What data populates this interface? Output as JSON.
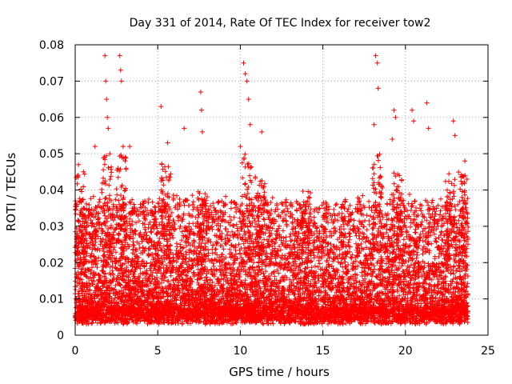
{
  "chart_data": {
    "type": "scatter",
    "title": "Day 331 of 2014, Rate Of TEC Index for receiver tow2",
    "xlabel": "GPS time / hours",
    "ylabel": "ROTI / TECUs",
    "xlim": [
      0,
      25
    ],
    "ylim": [
      0,
      0.08
    ],
    "xticks": [
      "0",
      "5",
      "10",
      "15",
      "20",
      "25"
    ],
    "yticks": [
      "0",
      "0.01",
      "0.02",
      "0.03",
      "0.04",
      "0.05",
      "0.06",
      "0.07",
      "0.08"
    ],
    "grid": true,
    "marker": "+",
    "color": "#ff0000",
    "series": [
      {
        "name": "ROTI",
        "x_range": [
          0,
          23.8
        ],
        "bulk_range": [
          0.004,
          0.03
        ],
        "notes": "dense scatter of many thousands of points; selected outliers listed below",
        "outliers": [
          [
            0.2,
            0.047
          ],
          [
            0.5,
            0.045
          ],
          [
            1.2,
            0.052
          ],
          [
            1.8,
            0.077
          ],
          [
            1.85,
            0.07
          ],
          [
            1.9,
            0.065
          ],
          [
            1.95,
            0.06
          ],
          [
            2.0,
            0.057
          ],
          [
            2.7,
            0.077
          ],
          [
            2.75,
            0.073
          ],
          [
            2.8,
            0.07
          ],
          [
            2.9,
            0.052
          ],
          [
            3.3,
            0.052
          ],
          [
            5.2,
            0.063
          ],
          [
            5.6,
            0.053
          ],
          [
            6.6,
            0.057
          ],
          [
            7.6,
            0.067
          ],
          [
            7.65,
            0.062
          ],
          [
            7.7,
            0.056
          ],
          [
            10.2,
            0.075
          ],
          [
            10.3,
            0.072
          ],
          [
            10.4,
            0.07
          ],
          [
            10.5,
            0.065
          ],
          [
            10.6,
            0.058
          ],
          [
            10.0,
            0.052
          ],
          [
            11.3,
            0.056
          ],
          [
            18.2,
            0.077
          ],
          [
            18.3,
            0.075
          ],
          [
            18.35,
            0.068
          ],
          [
            18.1,
            0.058
          ],
          [
            19.3,
            0.062
          ],
          [
            19.4,
            0.06
          ],
          [
            19.2,
            0.054
          ],
          [
            20.4,
            0.062
          ],
          [
            20.5,
            0.059
          ],
          [
            21.3,
            0.064
          ],
          [
            21.4,
            0.057
          ],
          [
            22.9,
            0.059
          ],
          [
            23.0,
            0.055
          ],
          [
            23.6,
            0.048
          ]
        ]
      }
    ]
  }
}
